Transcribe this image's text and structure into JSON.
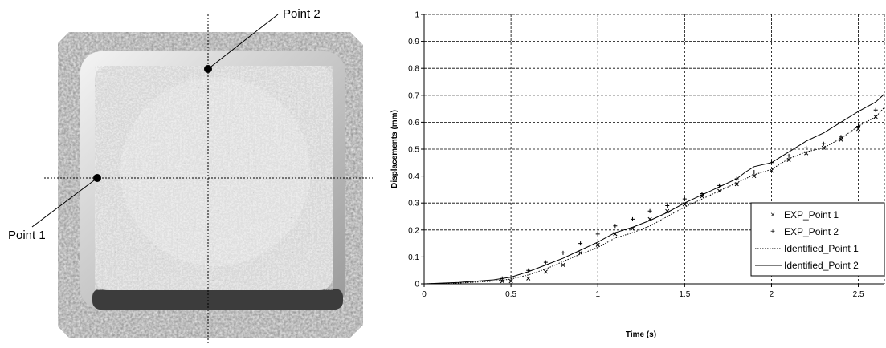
{
  "photo": {
    "point1_label": "Point 1",
    "point2_label": "Point 2"
  },
  "chart_data": {
    "type": "line",
    "xlabel": "Time (s)",
    "ylabel": "Displacements (mm)",
    "xlim": [
      0,
      2.65
    ],
    "ylim": [
      0,
      1
    ],
    "x_ticks": [
      0,
      0.5,
      1,
      1.5,
      2,
      2.5
    ],
    "x_tick_labels": [
      "0",
      "0.5",
      "1",
      "1.5",
      "2",
      "2.5"
    ],
    "y_ticks": [
      0,
      0.1,
      0.2,
      0.3,
      0.4,
      0.5,
      0.6,
      0.7,
      0.8,
      0.9,
      1
    ],
    "y_tick_labels": [
      "0",
      "0.1",
      "0.2",
      "0.3",
      "0.4",
      "0.5",
      "0.6",
      "0.7",
      "0.8",
      "0.9",
      "1"
    ],
    "grid": true,
    "legend_position": "bottom-right",
    "series": [
      {
        "name": "EXP_Point 1",
        "style": "marker-x",
        "x": [
          0.45,
          0.5,
          0.6,
          0.7,
          0.8,
          0.9,
          1.0,
          1.1,
          1.2,
          1.3,
          1.4,
          1.5,
          1.6,
          1.7,
          1.8,
          1.9,
          2.0,
          2.1,
          2.2,
          2.3,
          2.4,
          2.5,
          2.6
        ],
        "y": [
          0.01,
          0.01,
          0.02,
          0.045,
          0.07,
          0.115,
          0.145,
          0.185,
          0.205,
          0.24,
          0.27,
          0.295,
          0.325,
          0.345,
          0.37,
          0.4,
          0.42,
          0.46,
          0.485,
          0.505,
          0.535,
          0.575,
          0.62
        ]
      },
      {
        "name": "EXP_Point 2",
        "style": "marker-plus",
        "x": [
          0.45,
          0.5,
          0.6,
          0.7,
          0.8,
          0.9,
          1.0,
          1.1,
          1.2,
          1.3,
          1.4,
          1.5,
          1.6,
          1.7,
          1.8,
          1.9,
          2.0,
          2.1,
          2.2,
          2.3,
          2.4,
          2.5,
          2.6
        ],
        "y": [
          0.02,
          0.025,
          0.05,
          0.08,
          0.115,
          0.15,
          0.185,
          0.215,
          0.24,
          0.27,
          0.29,
          0.315,
          0.335,
          0.365,
          0.39,
          0.415,
          0.45,
          0.475,
          0.505,
          0.52,
          0.545,
          0.585,
          0.645
        ]
      },
      {
        "name": "Identified_Point 1",
        "style": "dotted",
        "x": [
          0,
          0.2,
          0.4,
          0.5,
          0.6,
          0.7,
          0.8,
          0.9,
          1.0,
          1.1,
          1.2,
          1.3,
          1.4,
          1.5,
          1.6,
          1.7,
          1.75,
          1.8,
          1.9,
          2.0,
          2.1,
          2.2,
          2.3,
          2.4,
          2.5,
          2.6,
          2.65
        ],
        "y": [
          0,
          0.003,
          0.01,
          0.018,
          0.033,
          0.055,
          0.083,
          0.11,
          0.135,
          0.17,
          0.19,
          0.215,
          0.25,
          0.285,
          0.315,
          0.345,
          0.36,
          0.375,
          0.405,
          0.425,
          0.465,
          0.49,
          0.505,
          0.54,
          0.585,
          0.62,
          0.655
        ]
      },
      {
        "name": "Identified_Point 2",
        "style": "solid",
        "x": [
          0,
          0.2,
          0.4,
          0.5,
          0.6,
          0.7,
          0.8,
          0.9,
          1.0,
          1.1,
          1.2,
          1.3,
          1.4,
          1.5,
          1.6,
          1.7,
          1.8,
          1.85,
          1.9,
          2.0,
          2.1,
          2.2,
          2.3,
          2.4,
          2.5,
          2.6,
          2.65
        ],
        "y": [
          0,
          0.005,
          0.015,
          0.025,
          0.045,
          0.07,
          0.095,
          0.125,
          0.155,
          0.19,
          0.21,
          0.235,
          0.265,
          0.3,
          0.33,
          0.36,
          0.39,
          0.415,
          0.435,
          0.45,
          0.49,
          0.53,
          0.56,
          0.6,
          0.64,
          0.675,
          0.705
        ]
      }
    ]
  }
}
